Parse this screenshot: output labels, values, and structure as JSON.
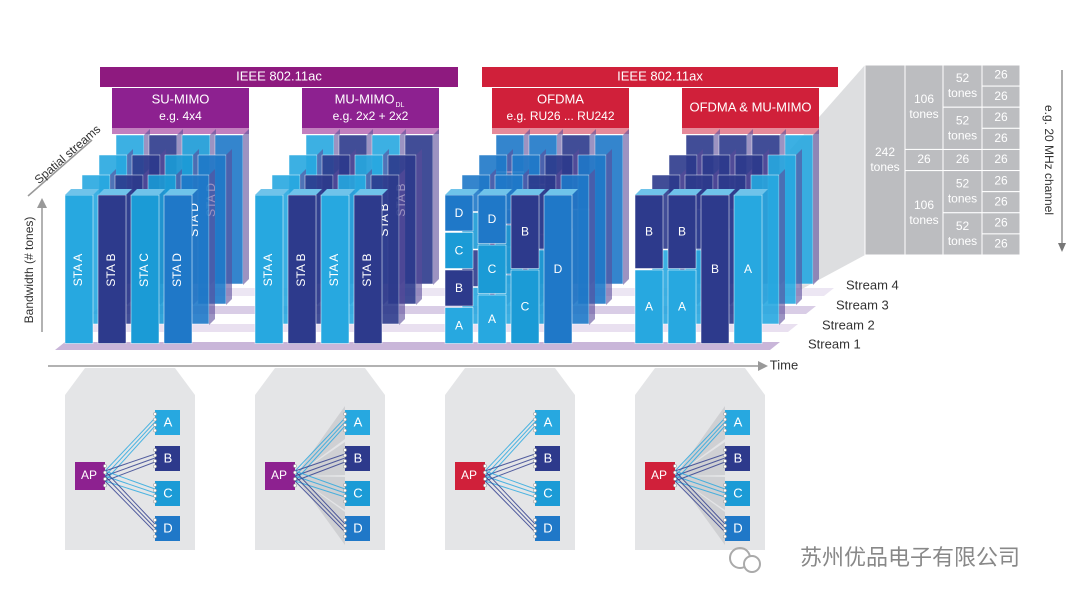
{
  "standards": [
    "IEEE 802.11ac",
    "IEEE 802.11ax"
  ],
  "panels": [
    {
      "title": "SU-MIMO",
      "subtitle": "e.g. 4x4",
      "columns": [
        [
          "STA A"
        ],
        [
          "STA B"
        ],
        [
          "STA C"
        ],
        [
          "STA D"
        ]
      ],
      "back_labels": [
        "STA D",
        "STA D"
      ]
    },
    {
      "title": "MU-MIMO",
      "title_subscript": "DL",
      "subtitle": "e.g. 2x2 + 2x2",
      "columns": [
        [
          "STA A"
        ],
        [
          "STA B"
        ],
        [
          "STA A"
        ],
        [
          "STA B"
        ]
      ],
      "back_labels": [
        "STA B",
        "STA B"
      ]
    },
    {
      "title": "OFDMA",
      "subtitle": "e.g. RU26 ... RU242",
      "columns": [
        [
          "A",
          "B",
          "C",
          "D"
        ],
        [
          "A",
          "C",
          "D"
        ],
        [
          "C",
          "B"
        ],
        [
          "D"
        ]
      ]
    },
    {
      "title": "OFDMA & MU-MIMO",
      "columns": [
        [
          "A",
          "B"
        ],
        [
          "A",
          "B"
        ],
        [
          "B"
        ],
        [
          "A"
        ]
      ]
    }
  ],
  "axes": {
    "spatial": "Spatial streams",
    "bandwidth": "Bandwidth (# tones)",
    "time": "Time",
    "streams": [
      "Stream 1",
      "Stream 2",
      "Stream 3",
      "Stream 4"
    ]
  },
  "tone_table": {
    "full": "242 tones",
    "half": [
      "106 tones",
      "106 tones"
    ],
    "middle": [
      "26",
      "26",
      "26"
    ],
    "quarter": [
      "52 tones",
      "52 tones",
      "52 tones",
      "52 tones"
    ],
    "units": [
      "26",
      "26",
      "26",
      "26",
      "26",
      "26",
      "26",
      "26",
      "26"
    ],
    "caption": "e.g. 20 MHz channel"
  },
  "ap_diagrams": [
    {
      "ap": "AP",
      "stations": [
        "A",
        "B",
        "C",
        "D"
      ]
    },
    {
      "ap": "AP",
      "stations": [
        "A",
        "B",
        "C",
        "D"
      ]
    },
    {
      "ap": "AP",
      "stations": [
        "A",
        "B",
        "C",
        "D"
      ]
    },
    {
      "ap": "AP",
      "stations": [
        "A",
        "B",
        "C",
        "D"
      ]
    }
  ],
  "watermark": "苏州优品电子有限公司"
}
